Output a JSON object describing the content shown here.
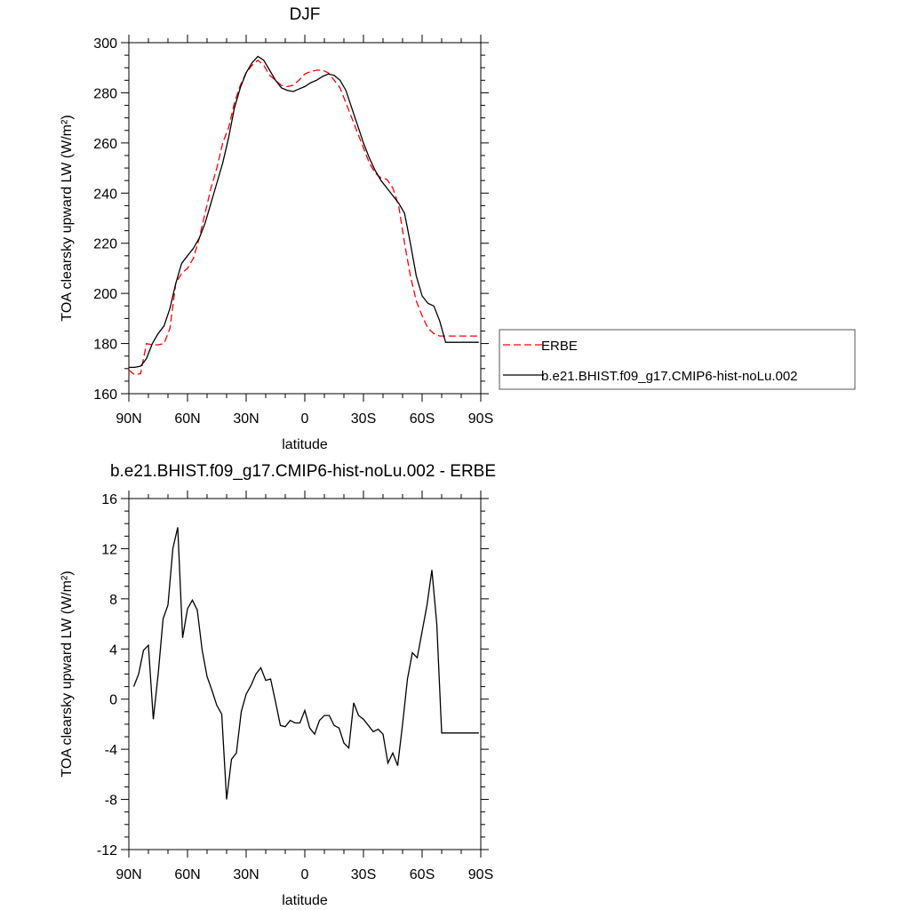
{
  "chart_data": [
    {
      "type": "line",
      "title": "DJF",
      "xlabel": "latitude",
      "ylabel": "TOA clearsky upward LW (W/m²)",
      "x_ticks": [
        {
          "value": 90,
          "label": "90N"
        },
        {
          "value": 60,
          "label": "60N"
        },
        {
          "value": 30,
          "label": "30N"
        },
        {
          "value": 0,
          "label": "0"
        },
        {
          "value": -30,
          "label": "30S"
        },
        {
          "value": -60,
          "label": "60S"
        },
        {
          "value": -90,
          "label": "90S"
        }
      ],
      "xlim": [
        90,
        -90
      ],
      "ylim": [
        160,
        300
      ],
      "y_ticks": [
        160,
        180,
        200,
        220,
        240,
        260,
        280,
        300
      ],
      "legend": "right",
      "series": [
        {
          "name": "ERBE",
          "color": "#ff0000",
          "dash": "dashed",
          "x": [
            90,
            87,
            84,
            81,
            78,
            75,
            72,
            69,
            66,
            63,
            60,
            57,
            54,
            51,
            48,
            45,
            42,
            39,
            36,
            33,
            30,
            27,
            24,
            21,
            18,
            15,
            12,
            9,
            6,
            3,
            0,
            -3,
            -6,
            -9,
            -12,
            -15,
            -18,
            -21,
            -24,
            -27,
            -30,
            -33,
            -36,
            -39,
            -42,
            -45,
            -48,
            -51,
            -54,
            -57,
            -60,
            -63,
            -66,
            -69,
            -72,
            -75,
            -78,
            -81,
            -84,
            -87,
            -90
          ],
          "y": [
            169.5,
            167.5,
            168,
            180,
            179.5,
            179.5,
            180,
            186,
            204,
            208,
            210,
            214,
            222,
            232,
            242,
            250,
            260,
            266,
            276,
            283,
            288,
            291,
            293,
            291,
            287,
            285,
            283,
            282.5,
            283,
            285,
            287.5,
            288.5,
            289,
            289,
            288,
            285,
            282,
            276,
            270,
            264,
            258,
            252,
            248,
            246,
            245.5,
            242,
            235,
            220,
            207,
            197,
            191,
            186,
            184,
            183,
            183,
            183,
            183,
            183,
            183,
            183,
            183
          ]
        },
        {
          "name": "b.e21.BHIST.f09_g17.CMIP6-hist-noLu.002",
          "color": "#000000",
          "dash": "solid",
          "x": [
            90,
            87,
            84,
            81,
            78,
            75,
            72,
            69,
            66,
            63,
            60,
            57,
            54,
            51,
            48,
            45,
            42,
            39,
            36,
            33,
            30,
            27,
            24,
            21,
            18,
            15,
            12,
            9,
            6,
            3,
            0,
            -3,
            -6,
            -9,
            -12,
            -15,
            -18,
            -21,
            -24,
            -27,
            -30,
            -33,
            -36,
            -39,
            -42,
            -45,
            -48,
            -51,
            -54,
            -57,
            -60,
            -63,
            -66,
            -69,
            -72,
            -75,
            -78,
            -81,
            -84,
            -87,
            -90
          ],
          "y": [
            170.5,
            170.5,
            171,
            174,
            180,
            184,
            187,
            194,
            204,
            212,
            215,
            218,
            222,
            228,
            236,
            244,
            252,
            262,
            274,
            282,
            288,
            292,
            294.5,
            293,
            289,
            285,
            282,
            281,
            280.5,
            281.5,
            282.5,
            284,
            285,
            286.5,
            287.5,
            287,
            285,
            281,
            274,
            267,
            260,
            254,
            249,
            245,
            242,
            239,
            236,
            232,
            220,
            207,
            199,
            196,
            195,
            189,
            180.5,
            180.5,
            180.5,
            180.5,
            180.5,
            180.5,
            180.5
          ]
        }
      ]
    },
    {
      "type": "line",
      "title": "b.e21.BHIST.f09_g17.CMIP6-hist-noLu.002 - ERBE",
      "xlabel": "latitude",
      "ylabel": "TOA clearsky upward LW (W/m²)",
      "x_ticks": [
        {
          "value": 90,
          "label": "90N"
        },
        {
          "value": 60,
          "label": "60N"
        },
        {
          "value": 30,
          "label": "30N"
        },
        {
          "value": 0,
          "label": "0"
        },
        {
          "value": -30,
          "label": "30S"
        },
        {
          "value": -60,
          "label": "60S"
        },
        {
          "value": -90,
          "label": "90S"
        }
      ],
      "xlim": [
        90,
        -90
      ],
      "ylim": [
        -12,
        16
      ],
      "y_ticks": [
        -12,
        -8,
        -4,
        0,
        4,
        8,
        12,
        16
      ],
      "series": [
        {
          "color": "#000000",
          "dash": "solid",
          "x": [
            87.5,
            85,
            82.5,
            80,
            77.5,
            75,
            72.5,
            70,
            67.5,
            65,
            62.5,
            60,
            57.5,
            55,
            52.5,
            50,
            47.5,
            45,
            42.5,
            40,
            37.5,
            35,
            32.5,
            30,
            27.5,
            25,
            22.5,
            20,
            17.5,
            15,
            12.5,
            10,
            7.5,
            5,
            2.5,
            0,
            -2.5,
            -5,
            -7.5,
            -10,
            -12.5,
            -15,
            -17.5,
            -20,
            -22.5,
            -25,
            -27.5,
            -30,
            -32.5,
            -35,
            -37.5,
            -40,
            -42.5,
            -45,
            -47.5,
            -50,
            -52.5,
            -55,
            -57.5,
            -60,
            -62.5,
            -65,
            -67.5,
            -70,
            -72.5,
            -75,
            -77.5,
            -80,
            -82.5,
            -85,
            -87.5
          ],
          "y": [
            1.0,
            2.0,
            3.9,
            4.3,
            -1.6,
            2.0,
            6.4,
            7.5,
            12.0,
            13.7,
            4.9,
            7.2,
            7.9,
            7.1,
            3.9,
            1.8,
            0.7,
            -0.5,
            -1.2,
            -8.0,
            -4.8,
            -4.3,
            -1.0,
            0.4,
            1.1,
            2.0,
            2.5,
            1.5,
            1.6,
            -0.2,
            -2.1,
            -2.2,
            -1.7,
            -1.9,
            -1.9,
            -0.9,
            -2.3,
            -2.8,
            -1.7,
            -1.3,
            -1.3,
            -2.1,
            -2.3,
            -3.5,
            -3.9,
            -0.3,
            -1.3,
            -1.6,
            -2.1,
            -2.6,
            -2.4,
            -2.8,
            -5.1,
            -4.3,
            -5.3,
            -2.0,
            1.6,
            3.7,
            3.3,
            5.4,
            7.5,
            10.3,
            6.0,
            -2.7,
            -2.7,
            -2.7,
            -2.7,
            -2.7,
            -2.7,
            -2.7,
            -2.7
          ]
        }
      ]
    }
  ]
}
